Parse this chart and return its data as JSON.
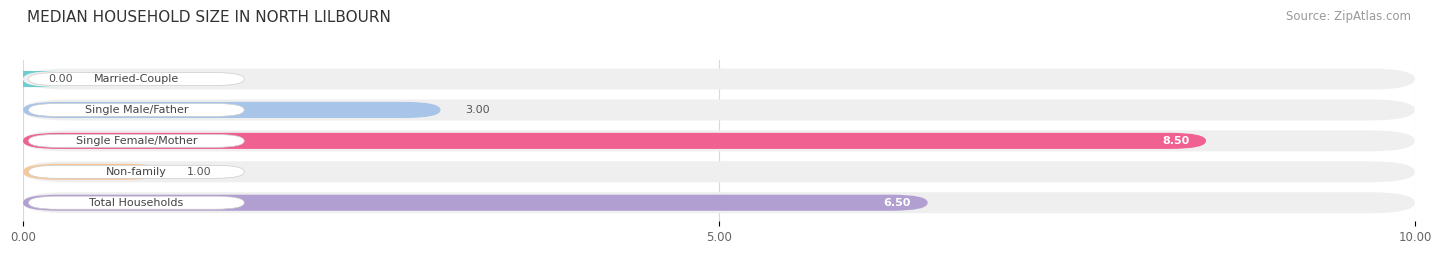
{
  "title": "MEDIAN HOUSEHOLD SIZE IN NORTH LILBOURN",
  "source": "Source: ZipAtlas.com",
  "categories": [
    "Married-Couple",
    "Single Male/Father",
    "Single Female/Mother",
    "Non-family",
    "Total Households"
  ],
  "values": [
    0.0,
    3.0,
    8.5,
    1.0,
    6.5
  ],
  "bar_colors": [
    "#6ecece",
    "#a8c4e8",
    "#f06090",
    "#f7c89a",
    "#b09fd0"
  ],
  "bar_bg_color": "#efefef",
  "value_labels": [
    "0.00",
    "3.00",
    "8.50",
    "1.00",
    "6.50"
  ],
  "value_label_inside": [
    false,
    false,
    true,
    false,
    true
  ],
  "xlim": [
    0,
    10.0
  ],
  "xticks": [
    0.0,
    5.0,
    10.0
  ],
  "xtick_labels": [
    "0.00",
    "5.00",
    "10.00"
  ],
  "title_fontsize": 11,
  "source_fontsize": 8.5,
  "label_fontsize": 8,
  "tick_fontsize": 8.5,
  "background_color": "#ffffff"
}
